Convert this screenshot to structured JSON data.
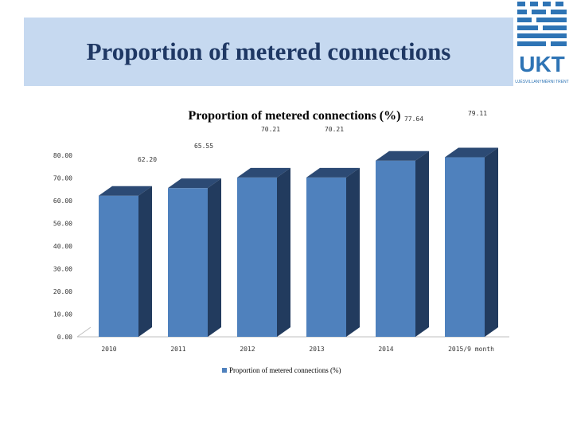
{
  "slide": {
    "title": "Proportion of metered connections",
    "logo_text": "UKT",
    "logo_subtext": "UJÉSVILLANYMÉRNI TRENT"
  },
  "colors": {
    "bar_front": "#4f81bd",
    "bar_top": "#2c4a74",
    "bar_side": "#223b5e",
    "title_band": "#c6d9f0",
    "logo": "#2e74b5"
  },
  "chart_data": {
    "type": "bar",
    "title": "Proportion of metered connections (%)",
    "categories": [
      "2010",
      "2011",
      "2012",
      "2013",
      "2014",
      "2015/9 month"
    ],
    "series": [
      {
        "name": "Proportion of metered connections (%)",
        "values": [
          62.2,
          65.55,
          70.21,
          70.21,
          77.64,
          79.11
        ]
      }
    ],
    "data_labels": [
      "62.20",
      "65.55",
      "70.21",
      "70.21",
      "77.64",
      "79.11"
    ],
    "y_ticks": [
      "0.00",
      "10.00",
      "20.00",
      "30.00",
      "40.00",
      "50.00",
      "60.00",
      "70.00",
      "80.00"
    ],
    "ylim": [
      0,
      80
    ],
    "legend_position": "bottom",
    "xlabel": "",
    "ylabel": ""
  }
}
